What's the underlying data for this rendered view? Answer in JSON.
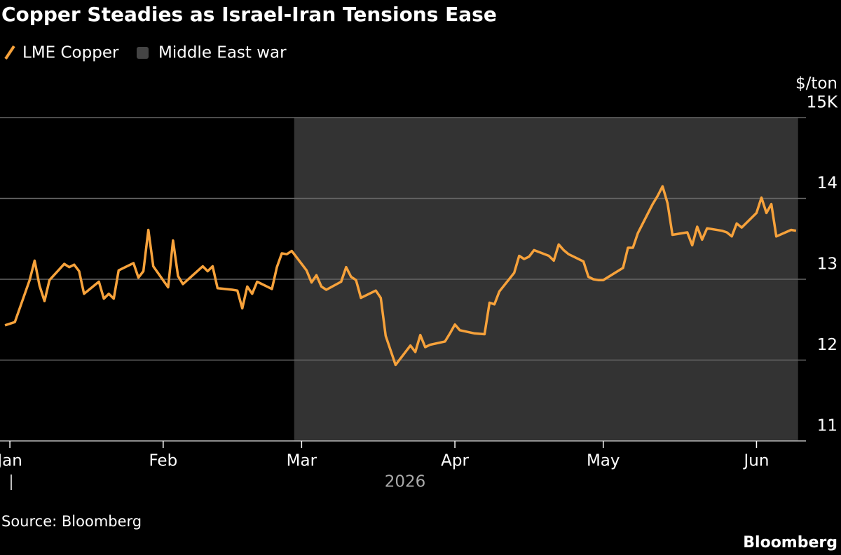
{
  "chart_data": {
    "type": "line",
    "title": "Copper Steadies as Israel-Iran Tensions Ease",
    "x": [
      -1,
      1,
      4,
      5,
      6,
      7,
      8,
      11,
      12,
      13,
      14,
      15,
      18,
      19,
      20,
      21,
      22,
      25,
      26,
      27,
      28,
      29,
      32,
      33,
      34,
      35,
      39,
      40,
      41,
      42,
      45,
      46,
      47,
      48,
      49,
      50,
      53,
      54,
      55,
      56,
      57,
      60,
      61,
      62,
      63,
      64,
      67,
      68,
      69,
      70,
      71,
      74,
      75,
      76,
      78,
      81,
      82,
      83,
      84,
      85,
      88,
      89,
      90,
      91,
      94,
      96,
      97,
      98,
      99,
      102,
      103,
      104,
      105,
      106,
      109,
      110,
      111,
      112,
      113,
      116,
      117,
      118,
      119,
      120,
      124,
      125,
      126,
      127,
      130,
      131,
      132,
      133,
      134,
      137,
      138,
      139,
      140,
      141,
      144,
      145,
      146,
      147,
      148,
      151,
      152,
      153,
      154,
      155,
      158,
      159
    ],
    "series": [
      {
        "name": "LME Copper",
        "color": "#f7a23b",
        "values": [
          12.43,
          12.47,
          12.99,
          13.23,
          12.92,
          12.73,
          12.99,
          13.19,
          13.15,
          13.18,
          13.1,
          12.82,
          12.97,
          12.76,
          12.82,
          12.76,
          13.11,
          13.2,
          13.02,
          13.1,
          13.61,
          13.16,
          12.9,
          13.48,
          13.04,
          12.94,
          13.16,
          13.1,
          13.16,
          12.89,
          12.87,
          12.86,
          12.64,
          12.91,
          12.82,
          12.97,
          12.88,
          13.15,
          13.32,
          13.31,
          13.35,
          13.11,
          12.96,
          13.05,
          12.91,
          12.87,
          12.97,
          13.15,
          13.03,
          12.99,
          12.77,
          12.86,
          12.77,
          12.3,
          11.94,
          12.18,
          12.1,
          12.31,
          12.16,
          12.19,
          12.23,
          12.33,
          12.44,
          12.37,
          12.33,
          12.32,
          12.71,
          12.69,
          12.85,
          13.08,
          13.29,
          13.25,
          13.28,
          13.36,
          13.29,
          13.23,
          13.43,
          13.36,
          13.31,
          13.22,
          13.03,
          13.0,
          12.99,
          12.99,
          13.14,
          13.39,
          13.39,
          13.57,
          13.93,
          14.03,
          14.15,
          13.94,
          13.55,
          13.58,
          13.42,
          13.65,
          13.49,
          13.63,
          13.6,
          13.58,
          13.53,
          13.69,
          13.64,
          13.82,
          14.01,
          13.82,
          13.93,
          13.53,
          13.61,
          13.6
        ]
      }
    ],
    "spans": [
      {
        "name": "Middle East war",
        "color": "#333333",
        "start": 57.5,
        "end": 159.4
      }
    ],
    "xlim": [
      -2,
      161
    ],
    "xticks": [
      {
        "value": 0,
        "label": "Jan"
      },
      {
        "value": 31,
        "label": "Feb"
      },
      {
        "value": 59,
        "label": "Mar"
      },
      {
        "value": 90,
        "label": "Apr"
      },
      {
        "value": 120,
        "label": "May"
      },
      {
        "value": 151,
        "label": "Jun"
      }
    ],
    "x_axis_label": "2026",
    "ylim": [
      11,
      15
    ],
    "yticks": [
      11,
      12,
      13,
      14,
      {
        "value": 15,
        "label": "15K"
      }
    ],
    "y_axis_label": "$/ton",
    "grid": true,
    "source": "Source: Bloomberg",
    "brand": "Bloomberg"
  }
}
